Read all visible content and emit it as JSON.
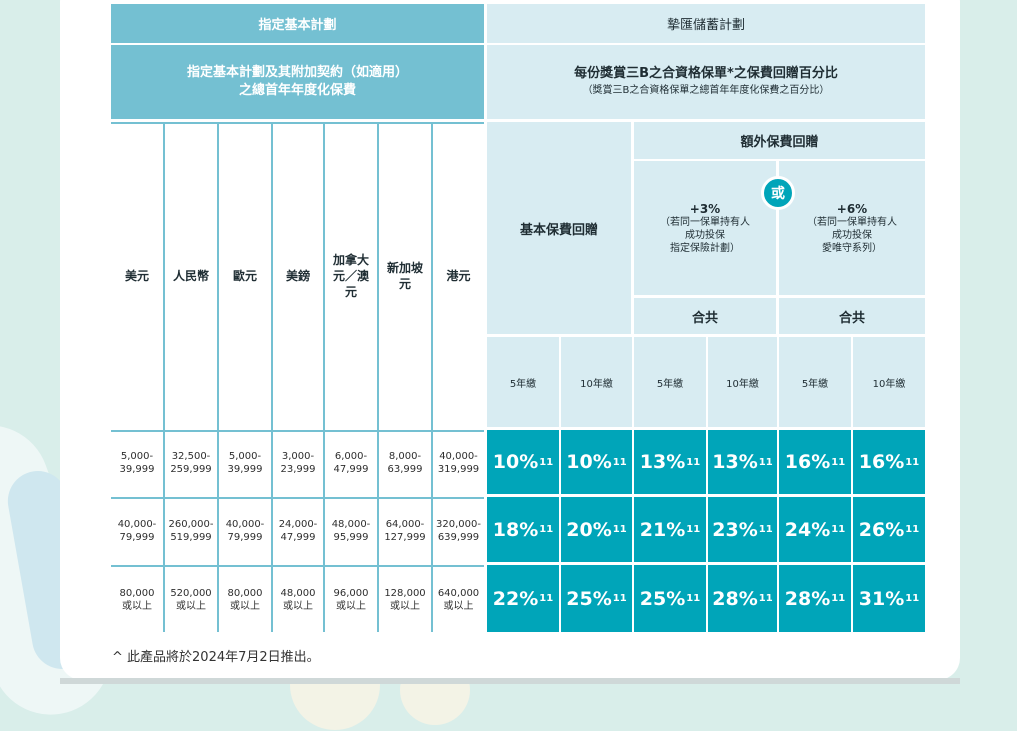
{
  "left_table": {
    "header_title": "指定基本計劃",
    "header_sub_line1": "指定基本計劃及其附加契約（如適用）",
    "header_sub_line2": "之總首年年度化保費",
    "currencies": [
      "美元",
      "人民幣",
      "歐元",
      "美鎊",
      "加拿大元／澳元",
      "新加坡元",
      "港元"
    ],
    "rows": [
      [
        "5,000-\n39,999",
        "32,500-\n259,999",
        "5,000-\n39,999",
        "3,000-\n23,999",
        "6,000-\n47,999",
        "8,000-\n63,999",
        "40,000-\n319,999"
      ],
      [
        "40,000-\n79,999",
        "260,000-\n519,999",
        "40,000-\n79,999",
        "24,000-\n47,999",
        "48,000-\n95,999",
        "64,000-\n127,999",
        "320,000-\n639,999"
      ],
      [
        "80,000\n或以上",
        "520,000\n或以上",
        "80,000\n或以上",
        "48,000\n或以上",
        "96,000\n或以上",
        "128,000\n或以上",
        "640,000\n或以上"
      ]
    ]
  },
  "right_table": {
    "header_title": "摯匯儲蓄計劃",
    "header_sub_line1": "每份獎賞三B之合資格保單*之保費回贈百分比",
    "header_sub_line2": "（獎賞三B之合資格保單之總首年年度化保費之百分比）",
    "base_rebate_label": "基本保費回贈",
    "extra_rebate_label": "額外保費回贈",
    "option1_title": "+3%",
    "option1_desc": "（若同一保單持有人\n成功投保\n指定保險計劃）",
    "or_label": "或",
    "option2_title": "+6%",
    "option2_desc": "（若同一保單持有人\n成功投保\n愛唯守系列）",
    "total_label": "合共",
    "terms": [
      "5年繳",
      "10年繳",
      "5年繳",
      "10年繳",
      "5年繳",
      "10年繳"
    ],
    "rows": [
      [
        "10%",
        "10%",
        "13%",
        "13%",
        "16%",
        "16%"
      ],
      [
        "18%",
        "20%",
        "21%",
        "23%",
        "24%",
        "26%"
      ],
      [
        "22%",
        "25%",
        "25%",
        "28%",
        "28%",
        "31%"
      ]
    ],
    "footnote_marker": "11"
  },
  "footnote": "^ 此產品將於2024年7月2日推出。"
}
